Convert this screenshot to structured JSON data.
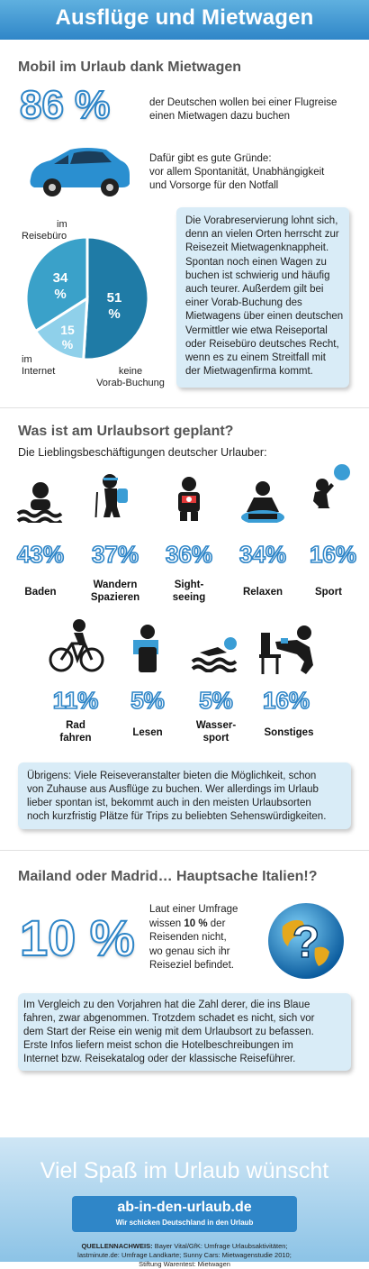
{
  "header": {
    "title": "Ausflüge und Mietwagen"
  },
  "section1": {
    "title": "Mobil im Urlaub dank Mietwagen",
    "big_value": "86 %",
    "big_text": [
      "der Deutschen wollen bei einer Flugreise",
      "einen Mietwagen dazu buchen"
    ],
    "reasons": [
      "Dafür gibt es gute Gründe:",
      "vor allem Spontanität, Unabhängigkeit",
      "und Vorsorge für den Notfall"
    ],
    "pie": {
      "slices": [
        {
          "label_lines": [
            "keine",
            "Vorab-Buchung"
          ],
          "value_text": [
            "51",
            "%"
          ],
          "value": 51,
          "color": "#1f7ba6"
        },
        {
          "label_lines": [
            "im",
            "Internet"
          ],
          "value_text": [
            "15",
            "%"
          ],
          "value": 15,
          "color": "#8fd0ea"
        },
        {
          "label_lines": [
            "im",
            "Reisebüro"
          ],
          "value_text": [
            "34",
            "%"
          ],
          "value": 34,
          "color": "#3aa1c9"
        }
      ]
    },
    "info": [
      "Die Vorabreservierung lohnt sich,",
      "denn an vielen Orten herrscht zur",
      "Reisezeit Mietwagenknappheit.",
      "Spontan noch einen Wagen zu",
      "buchen ist schwierig und häufig",
      "auch teurer. Außerdem gilt bei",
      "einer Vorab-Buchung des",
      "Mietwagens über einen deutschen",
      "Vermittler wie etwa Reiseportal",
      "oder Reisebüro deutsches Recht,",
      "wenn es zu einem Streitfall mit",
      "der Mietwagenfirma kommt."
    ]
  },
  "section2": {
    "title": "Was ist am Urlaubsort geplant?",
    "subtitle": "Die Lieblingsbeschäftigungen deutscher Urlauber:",
    "activities": [
      {
        "pct": "43%",
        "label": [
          "Baden"
        ],
        "icon": "swimmer-icon"
      },
      {
        "pct": "37%",
        "label": [
          "Wandern",
          "Spazieren"
        ],
        "icon": "hiker-icon"
      },
      {
        "pct": "36%",
        "label": [
          "Sight-",
          "seeing"
        ],
        "icon": "camera-icon"
      },
      {
        "pct": "34%",
        "label": [
          "Relaxen"
        ],
        "icon": "relax-icon"
      },
      {
        "pct": "16%",
        "label": [
          "Sport"
        ],
        "icon": "sport-icon"
      },
      {
        "pct": "11%",
        "label": [
          "Rad",
          "fahren"
        ],
        "icon": "bicycle-icon"
      },
      {
        "pct": "5%",
        "label": [
          "Lesen"
        ],
        "icon": "reader-icon"
      },
      {
        "pct": "5%",
        "label": [
          "Wasser-",
          "sport"
        ],
        "icon": "watersport-icon"
      },
      {
        "pct": "16%",
        "label": [
          "Sonstiges"
        ],
        "icon": "other-icon"
      }
    ],
    "info": [
      "Übrigens: Viele Reiseveranstalter bieten die Möglichkeit, schon",
      "von Zuhause aus Ausflüge zu buchen. Wer allerdings im Urlaub",
      "lieber spontan ist, bekommt auch in den meisten Urlaubsorten",
      "noch kurzfristig Plätze für Trips zu beliebten Sehenswürdigkeiten."
    ]
  },
  "section3": {
    "title": "Mailand oder Madrid… Hauptsache Italien!?",
    "big_value": "10 %",
    "text_before": "Laut einer Umfrage",
    "text_line2_pre": "wissen ",
    "text_line2_bold": "10 %",
    "text_line2_post": " der",
    "text_rest": [
      "Reisenden nicht,",
      "wo genau sich ihr",
      "Reiseziel befindet."
    ],
    "globe_mark": "?",
    "info": [
      "Im Vergleich zu den Vorjahren hat die Zahl derer, die ins Blaue",
      "fahren, zwar abgenommen. Trotzdem schadet es nicht, sich vor",
      "dem Start der Reise ein wenig mit dem Urlaubsort zu befassen.",
      "Erste Infos liefern meist schon die Hotelbeschreibungen im",
      "Internet bzw. Reisekatalog oder der klassische Reiseführer."
    ]
  },
  "footer": {
    "title": "Viel Spaß im Urlaub wünscht",
    "logo": "ab-in-den-urlaub.de",
    "logo_tagline": "Wir schicken Deutschland in den Urlaub",
    "source_label": "QUELLENNACHWEIS:",
    "source": [
      "Bayer Vital/GfK: Umfrage Urlaubsaktivitäten;",
      "lastminute.de: Umfrage Landkarte; Sunny Cars: Mietwagenstudie 2010;",
      "Stiftung Warentest: Mietwagen"
    ]
  },
  "colors": {
    "accent": "#2f86c8",
    "box": "#d9ecf7",
    "dark_icon": "#1a1a1a"
  }
}
